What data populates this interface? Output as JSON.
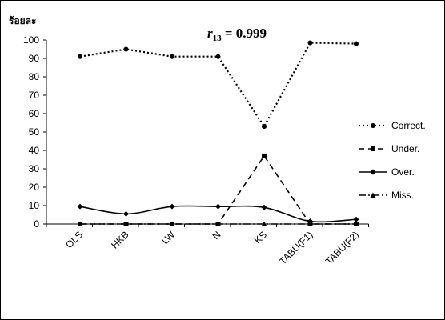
{
  "chart_data": {
    "type": "line",
    "ylabel": "ร้อยละ",
    "annotation_symbol": "r",
    "annotation_subscript": "13",
    "annotation_rest": " = 0.999",
    "categories": [
      "OLS",
      "HKB",
      "LW",
      "N",
      "KS",
      "TABU(F1)",
      "TABU(F2)"
    ],
    "ylim": [
      0,
      100
    ],
    "yticks": [
      0,
      10,
      20,
      30,
      40,
      50,
      60,
      70,
      80,
      90,
      100
    ],
    "grid": false,
    "legend_position": "right",
    "series": [
      {
        "name": "Correct.",
        "values": [
          91,
          95,
          91,
          91,
          53,
          98.5,
          98
        ],
        "dash": "2,3",
        "marker": "circle",
        "style": "dotted"
      },
      {
        "name": "Under.",
        "values": [
          0,
          0,
          0,
          0,
          37,
          0,
          0
        ],
        "dash": "7,5",
        "marker": "square",
        "style": "dashed"
      },
      {
        "name": "Over.",
        "values": [
          9.5,
          5.5,
          9.5,
          9.5,
          9,
          1.5,
          2.5
        ],
        "dash": "",
        "marker": "diamond",
        "style": "solid",
        "smooth": true
      },
      {
        "name": "Miss.",
        "values": [
          0,
          0,
          0,
          0,
          0,
          0,
          0
        ],
        "dash": "9,3,2,3",
        "marker": "triangle",
        "style": "dashdot"
      }
    ]
  }
}
